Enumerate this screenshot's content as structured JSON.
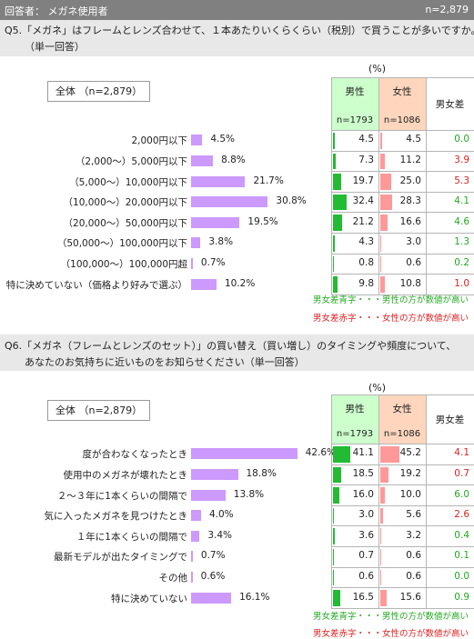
{
  "header": {
    "respondents": "回答者： メガネ使用者",
    "n_total": "n=2,879"
  },
  "colors": {
    "bar": "#cc99ff",
    "male_bar": "#22bb33",
    "female_bar": "#ff9999",
    "diff_pos": "#22aa22",
    "diff_neg": "#dd2222",
    "male_header": "#ccffcc",
    "female_header": "#fdd6bd"
  },
  "q5": {
    "question_line1": "Q5.「メガネ」はフレームとレンズ合わせて、１本あたりいくらくらい（税別）で買うことが多いですか。",
    "question_line2": "（単一回答）",
    "total_label": "全体 （n=2,879）",
    "unit": "(%)",
    "male_header": "男性",
    "male_n": "n=1793",
    "female_header": "女性",
    "female_n": "n=1086",
    "diff_header": "男女差",
    "legend_pos": "男女差青字・・・男性の方が数値が高い",
    "legend_neg": "男女差赤字・・・女性の方が数値が高い"
  },
  "q6": {
    "question_line1": "Q6.「メガネ（フレームとレンズのセット）」の買い替え（買い増し）のタイミングや頻度について、",
    "question_line2": "あなたのお気持ちに近いものをお知らせください（単一回答）",
    "total_label": "全体 （n=2,879）",
    "unit": "(%)",
    "male_header": "男性",
    "male_n": "n=1793",
    "female_header": "女性",
    "female_n": "n=1086",
    "diff_header": "男女差",
    "legend_pos": "男女差青字・・・男性の方が数値が高い",
    "legend_neg": "男女差赤字・・・女性の方が数値が高い"
  },
  "chart_data": [
    {
      "type": "bar",
      "title": "Q5.「メガネ」はフレームとレンズ合わせて、１本あたりいくらくらい（税別）で買うことが多いですか。",
      "categories": [
        "2,000円以下",
        "（2,000～）5,000円以下",
        "（5,000～）10,000円以下",
        "（10,000～）20,000円以下",
        "（20,000～）50,000円以下",
        "（50,000～）100,000円以下",
        "（100,000～）100,000円超",
        "特に決めていない（価格より好みで選ぶ）"
      ],
      "values": [
        4.5,
        8.8,
        21.7,
        30.8,
        19.5,
        3.8,
        0.7,
        10.2
      ],
      "value_labels": [
        "4.5%",
        "8.8%",
        "21.7%",
        "30.8%",
        "19.5%",
        "3.8%",
        "0.7%",
        "10.2%"
      ],
      "table": {
        "male": [
          "4.5",
          "7.3",
          "19.7",
          "32.4",
          "21.2",
          "4.3",
          "0.8",
          "9.8"
        ],
        "female": [
          "4.5",
          "11.2",
          "25.0",
          "28.3",
          "16.6",
          "3.0",
          "0.6",
          "10.8"
        ],
        "diff": [
          "0.0",
          "3.9",
          "5.3",
          "4.1",
          "4.6",
          "1.3",
          "0.2",
          "1.0"
        ],
        "diff_sign": [
          "pos",
          "neg",
          "neg",
          "pos",
          "pos",
          "pos",
          "pos",
          "neg"
        ]
      }
    },
    {
      "type": "bar",
      "title": "Q6.「メガネ（フレームとレンズのセット）」の買い替え（買い増し）のタイミングや頻度について、",
      "categories": [
        "度が合わなくなったとき",
        "使用中のメガネが壊れたとき",
        "２～３年に1本くらいの間隔で",
        "気に入ったメガネを見つけたとき",
        "１年に1本くらいの間隔で",
        "最新モデルが出たタイミングで",
        "その他",
        "特に決めていない"
      ],
      "values": [
        42.6,
        18.8,
        13.8,
        4.0,
        3.4,
        0.7,
        0.6,
        16.1
      ],
      "value_labels": [
        "42.6%",
        "18.8%",
        "13.8%",
        "4.0%",
        "3.4%",
        "0.7%",
        "0.6%",
        "16.1%"
      ],
      "table": {
        "male": [
          "41.1",
          "18.5",
          "16.0",
          "3.0",
          "3.6",
          "0.7",
          "0.6",
          "16.5"
        ],
        "female": [
          "45.2",
          "19.2",
          "10.0",
          "5.6",
          "3.2",
          "0.6",
          "0.6",
          "15.6"
        ],
        "diff": [
          "4.1",
          "0.7",
          "6.0",
          "2.6",
          "0.4",
          "0.1",
          "0.0",
          "0.9"
        ],
        "diff_sign": [
          "neg",
          "neg",
          "pos",
          "neg",
          "pos",
          "pos",
          "pos",
          "pos"
        ]
      }
    }
  ]
}
